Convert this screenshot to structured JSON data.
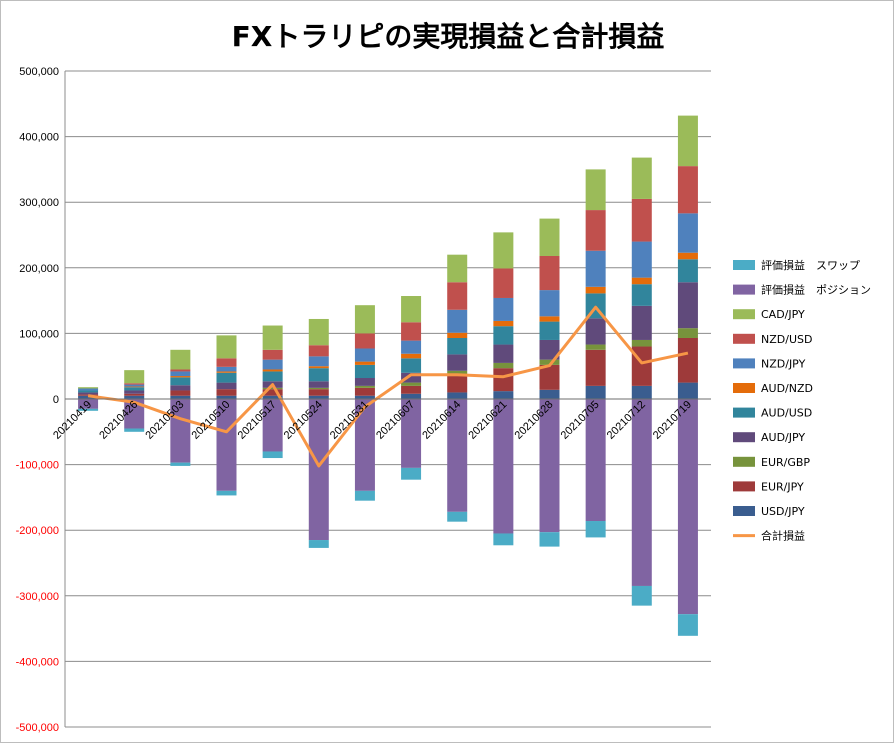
{
  "chart_data": {
    "type": "bar",
    "stacked": true,
    "title": "FXトラリピの実現損益と合計損益",
    "xlabel": "",
    "ylabel": "",
    "ylim": [
      -500000,
      500000
    ],
    "ytick_step": 100000,
    "grid": true,
    "legend_placement": "right",
    "categories": [
      "20210419",
      "20210426",
      "20210503",
      "20210510",
      "20210517",
      "20210524",
      "20210531",
      "20210607",
      "20210614",
      "20210621",
      "20210628",
      "20210705",
      "20210712",
      "20210719"
    ],
    "positive_series": [
      {
        "name": "USD/JPY",
        "color": "#3a5d8f",
        "values": [
          5000,
          5000,
          5000,
          5000,
          5000,
          5000,
          5000,
          8000,
          10000,
          12000,
          14000,
          20000,
          20000,
          25000
        ]
      },
      {
        "name": "EUR/JPY",
        "color": "#9e3a3a",
        "values": [
          2000,
          3000,
          8000,
          10000,
          10000,
          10000,
          12000,
          12000,
          25000,
          35000,
          38000,
          55000,
          60000,
          68000
        ]
      },
      {
        "name": "EUR/GBP",
        "color": "#77933c",
        "values": [
          0,
          0,
          0,
          0,
          2000,
          2000,
          3000,
          5000,
          8000,
          8000,
          8000,
          8000,
          10000,
          15000
        ]
      },
      {
        "name": "AUD/JPY",
        "color": "#604a7b",
        "values": [
          3000,
          5000,
          8000,
          10000,
          10000,
          10000,
          12000,
          15000,
          25000,
          28000,
          30000,
          40000,
          52000,
          70000
        ]
      },
      {
        "name": "AUD/USD",
        "color": "#31859c",
        "values": [
          3000,
          5000,
          12000,
          15000,
          15000,
          20000,
          20000,
          22000,
          25000,
          28000,
          28000,
          38000,
          33000,
          35000
        ]
      },
      {
        "name": "AUD/NZD",
        "color": "#e46c0a",
        "values": [
          0,
          1000,
          2000,
          2000,
          3000,
          3000,
          5000,
          7000,
          8000,
          8000,
          8000,
          10000,
          10000,
          10000
        ]
      },
      {
        "name": "NZD/JPY",
        "color": "#4f81bd",
        "values": [
          3000,
          3000,
          7000,
          7000,
          15000,
          15000,
          20000,
          20000,
          35000,
          35000,
          40000,
          55000,
          55000,
          60000
        ]
      },
      {
        "name": "NZD/USD",
        "color": "#c0504d",
        "values": [
          0,
          2000,
          3000,
          13000,
          15000,
          17000,
          23000,
          28000,
          42000,
          45000,
          52000,
          62000,
          65000,
          72000
        ]
      },
      {
        "name": "CAD/JPY",
        "color": "#9bbb59",
        "values": [
          2000,
          20000,
          30000,
          35000,
          37000,
          40000,
          43000,
          40000,
          42000,
          55000,
          57000,
          62000,
          63000,
          77000
        ]
      }
    ],
    "negative_series": [
      {
        "name": "評価損益　ポジション",
        "color": "#8064a2",
        "values": [
          -15000,
          -45000,
          -97000,
          -140000,
          -80000,
          -215000,
          -140000,
          -105000,
          -172000,
          -205000,
          -203000,
          -186000,
          -285000,
          -328000
        ]
      },
      {
        "name": "評価損益　スワップ",
        "color": "#4bacc6",
        "values": [
          -3000,
          -5000,
          -5000,
          -7000,
          -10000,
          -12000,
          -15000,
          -18000,
          -15000,
          -18000,
          -22000,
          -25000,
          -30000,
          -33000
        ]
      }
    ],
    "line_series": {
      "name": "合計損益",
      "color": "#f79646",
      "values": [
        5000,
        -5000,
        -30000,
        -50000,
        22000,
        -102000,
        -12000,
        37000,
        37000,
        34000,
        51000,
        140000,
        55000,
        70000
      ]
    },
    "legend_order": [
      "評価損益　スワップ",
      "評価損益　ポジション",
      "CAD/JPY",
      "NZD/USD",
      "NZD/JPY",
      "AUD/NZD",
      "AUD/USD",
      "AUD/JPY",
      "EUR/GBP",
      "EUR/JPY",
      "USD/JPY",
      "合計損益"
    ],
    "positive_tick_color": "#000000",
    "negative_tick_color": "#ff0000"
  }
}
